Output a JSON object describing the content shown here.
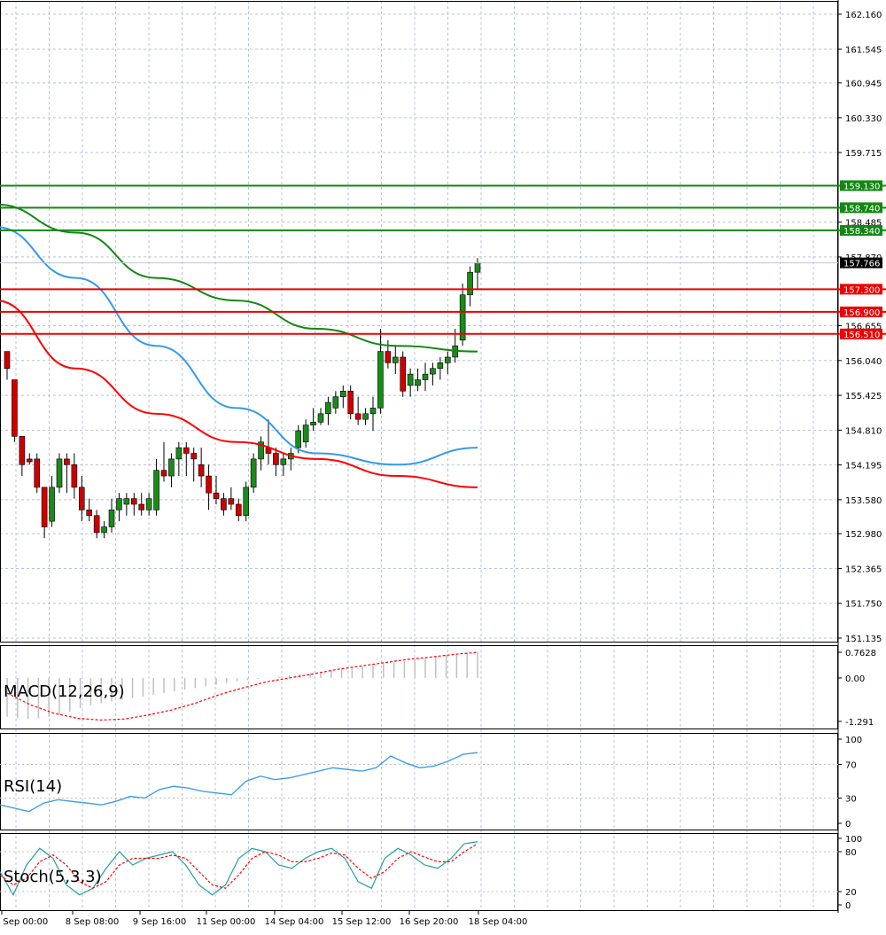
{
  "colors": {
    "bull": "#1a8a1a",
    "bear": "#cc0000",
    "ma_red": "#ff0000",
    "ma_blue": "#3399ee",
    "ma_green": "#118811",
    "support": "#ee0000",
    "resistance": "#118811",
    "grid": "#b8c4d6",
    "current_price_bg": "#000000"
  },
  "chart_data": [
    {
      "type": "candlestick",
      "name": "price",
      "ylim": [
        151.135,
        162.16
      ],
      "y_ticks": [
        "162.160",
        "161.545",
        "160.945",
        "160.330",
        "159.715",
        "158.485",
        "157.870",
        "156.655",
        "156.040",
        "155.425",
        "154.810",
        "154.195",
        "153.580",
        "152.980",
        "152.365",
        "151.750",
        "151.135"
      ],
      "x_ticks": [
        "7 Sep 00:00",
        "8 Sep 08:00",
        "9 Sep 16:00",
        "11 Sep 00:00",
        "14 Sep 04:00",
        "15 Sep 12:00",
        "16 Sep 20:00",
        "18 Sep 04:00"
      ],
      "current_price": "157.766",
      "current_price_value": 157.766,
      "resistance_levels": [
        {
          "label": "159.130",
          "value": 159.13
        },
        {
          "label": "158.740",
          "value": 158.74
        },
        {
          "label": "158.340",
          "value": 158.34
        }
      ],
      "support_levels": [
        {
          "label": "157.300",
          "value": 157.3
        },
        {
          "label": "156.900",
          "value": 156.9
        },
        {
          "label": "156.510",
          "value": 156.51
        }
      ],
      "candles": [
        [
          156.2,
          156.2,
          155.9,
          155.7
        ],
        [
          155.7,
          155.7,
          154.7,
          154.6
        ],
        [
          154.7,
          154.7,
          154.2,
          154.0
        ],
        [
          154.3,
          154.4,
          154.25,
          154.2
        ],
        [
          154.3,
          154.4,
          153.8,
          153.7
        ],
        [
          153.8,
          153.8,
          153.1,
          152.9
        ],
        [
          153.2,
          154.0,
          153.8,
          153.1
        ],
        [
          153.8,
          154.4,
          154.3,
          153.7
        ],
        [
          154.3,
          154.4,
          154.2,
          153.7
        ],
        [
          154.2,
          154.4,
          153.8,
          153.6
        ],
        [
          153.8,
          154.0,
          153.4,
          153.2
        ],
        [
          153.4,
          153.6,
          153.3,
          153.2
        ],
        [
          153.3,
          153.4,
          153.0,
          152.9
        ],
        [
          153.0,
          153.2,
          153.1,
          152.9
        ],
        [
          153.1,
          153.6,
          153.4,
          153.0
        ],
        [
          153.4,
          153.7,
          153.6,
          153.2
        ],
        [
          153.5,
          153.7,
          153.6,
          153.3
        ],
        [
          153.6,
          153.7,
          153.5,
          153.3
        ],
        [
          153.5,
          153.7,
          153.4,
          153.3
        ],
        [
          153.4,
          153.7,
          153.6,
          153.3
        ],
        [
          153.4,
          154.3,
          154.1,
          153.3
        ],
        [
          154.1,
          154.6,
          154.0,
          153.9
        ],
        [
          154.0,
          154.4,
          154.3,
          153.8
        ],
        [
          154.3,
          154.6,
          154.5,
          154.0
        ],
        [
          154.5,
          154.6,
          154.4,
          154.0
        ],
        [
          154.4,
          154.5,
          154.3,
          153.9
        ],
        [
          154.2,
          154.5,
          154.0,
          153.8
        ],
        [
          154.0,
          154.2,
          153.7,
          153.4
        ],
        [
          153.7,
          154.0,
          153.6,
          153.5
        ],
        [
          153.6,
          153.7,
          153.4,
          153.3
        ],
        [
          153.6,
          153.8,
          153.5,
          153.4
        ],
        [
          153.5,
          153.6,
          153.3,
          153.2
        ],
        [
          153.3,
          153.9,
          153.8,
          153.2
        ],
        [
          153.8,
          154.4,
          154.3,
          153.7
        ],
        [
          154.3,
          154.7,
          154.6,
          154.1
        ],
        [
          154.5,
          155.0,
          154.4,
          154.2
        ],
        [
          154.4,
          154.5,
          154.2,
          154.0
        ],
        [
          154.2,
          154.4,
          154.3,
          154.0
        ],
        [
          154.3,
          154.5,
          154.4,
          154.1
        ],
        [
          154.5,
          154.9,
          154.8,
          154.4
        ],
        [
          154.6,
          155.0,
          154.9,
          154.5
        ],
        [
          154.9,
          155.2,
          154.95,
          154.8
        ],
        [
          154.95,
          155.2,
          155.1,
          154.9
        ],
        [
          155.1,
          155.4,
          155.3,
          154.9
        ],
        [
          155.2,
          155.5,
          155.4,
          155.1
        ],
        [
          155.4,
          155.6,
          155.5,
          155.2
        ],
        [
          155.5,
          155.6,
          155.1,
          155.0
        ],
        [
          155.1,
          155.4,
          155.0,
          154.9
        ],
        [
          155.0,
          155.2,
          155.1,
          154.9
        ],
        [
          155.1,
          155.4,
          155.2,
          154.8
        ],
        [
          155.2,
          156.6,
          156.2,
          155.1
        ],
        [
          156.2,
          156.4,
          156.0,
          155.9
        ],
        [
          156.0,
          156.3,
          156.1,
          155.8
        ],
        [
          156.1,
          156.2,
          155.5,
          155.4
        ],
        [
          155.6,
          155.9,
          155.8,
          155.4
        ],
        [
          155.6,
          155.9,
          155.7,
          155.5
        ],
        [
          155.7,
          156.0,
          155.8,
          155.5
        ],
        [
          155.8,
          156.0,
          155.9,
          155.6
        ],
        [
          155.9,
          156.1,
          156.0,
          155.7
        ],
        [
          156.0,
          156.2,
          156.1,
          155.8
        ],
        [
          156.1,
          156.6,
          156.3,
          156.0
        ],
        [
          156.4,
          157.4,
          157.2,
          156.3
        ],
        [
          157.2,
          157.7,
          157.6,
          157.0
        ],
        [
          157.6,
          157.85,
          157.77,
          157.3
        ]
      ],
      "moving_averages": [
        {
          "color": "#ff0000",
          "values": [
            157.1,
            155.9,
            155.1,
            154.6,
            154.3,
            154.0,
            153.8
          ]
        },
        {
          "color": "#3399ee",
          "values": [
            158.4,
            157.5,
            156.3,
            155.2,
            154.4,
            154.2,
            154.5
          ]
        },
        {
          "color": "#118811",
          "values": [
            158.8,
            158.3,
            157.5,
            157.1,
            156.6,
            156.3,
            156.2
          ]
        }
      ]
    },
    {
      "type": "bar",
      "name": "MACD(12,26,9)",
      "label": "MACD(12,26,9)",
      "ylim": [
        -1.291,
        0.7628
      ],
      "y_ticks": [
        "0.7628",
        "0.00",
        "-1.291"
      ],
      "histogram": [
        -1.15,
        -1.2,
        -1.22,
        -1.2,
        -1.15,
        -1.1,
        -1.0,
        -0.9,
        -0.82,
        -0.75,
        -0.7,
        -0.65,
        -0.6,
        -0.55,
        -0.5,
        -0.45,
        -0.4,
        -0.35,
        -0.3,
        -0.25,
        -0.2,
        -0.15,
        -0.1,
        -0.06,
        -0.03,
        0.01,
        0.04,
        0.08,
        0.12,
        0.15,
        0.18,
        0.22,
        0.25,
        0.3,
        0.34,
        0.38,
        0.42,
        0.46,
        0.5,
        0.54,
        0.58,
        0.62,
        0.68,
        0.72,
        0.76,
        0.78
      ],
      "signal": [
        -0.45,
        -0.8,
        -1.05,
        -1.2,
        -1.25,
        -1.22,
        -1.1,
        -0.95,
        -0.75,
        -0.5,
        -0.3,
        -0.12,
        0.0,
        0.12,
        0.25,
        0.35,
        0.45,
        0.55,
        0.62,
        0.7,
        0.76
      ]
    },
    {
      "type": "line",
      "name": "RSI(14)",
      "label": "RSI(14)",
      "ylim": [
        0,
        100
      ],
      "y_ticks": [
        "100",
        "70",
        "30",
        "0"
      ],
      "values": [
        22,
        18,
        14,
        24,
        28,
        26,
        24,
        22,
        26,
        32,
        30,
        40,
        44,
        42,
        38,
        36,
        34,
        50,
        56,
        52,
        54,
        58,
        62,
        66,
        64,
        62,
        66,
        80,
        72,
        66,
        68,
        74,
        82,
        84
      ]
    },
    {
      "type": "line",
      "name": "Stoch(5,3,3)",
      "label": "Stoch(5,3,3)",
      "ylim": [
        0,
        100
      ],
      "y_ticks": [
        "100",
        "80",
        "20",
        "0"
      ],
      "main": [
        50,
        15,
        60,
        85,
        70,
        30,
        15,
        25,
        55,
        80,
        60,
        70,
        75,
        80,
        60,
        30,
        15,
        30,
        70,
        85,
        80,
        60,
        55,
        70,
        80,
        85,
        70,
        35,
        25,
        70,
        85,
        75,
        60,
        55,
        70,
        92,
        95
      ],
      "signal": [
        45,
        30,
        40,
        65,
        75,
        60,
        35,
        25,
        35,
        60,
        70,
        70,
        70,
        75,
        70,
        50,
        30,
        25,
        45,
        70,
        80,
        75,
        65,
        65,
        70,
        78,
        75,
        55,
        40,
        50,
        70,
        80,
        72,
        65,
        65,
        80,
        92
      ]
    }
  ]
}
